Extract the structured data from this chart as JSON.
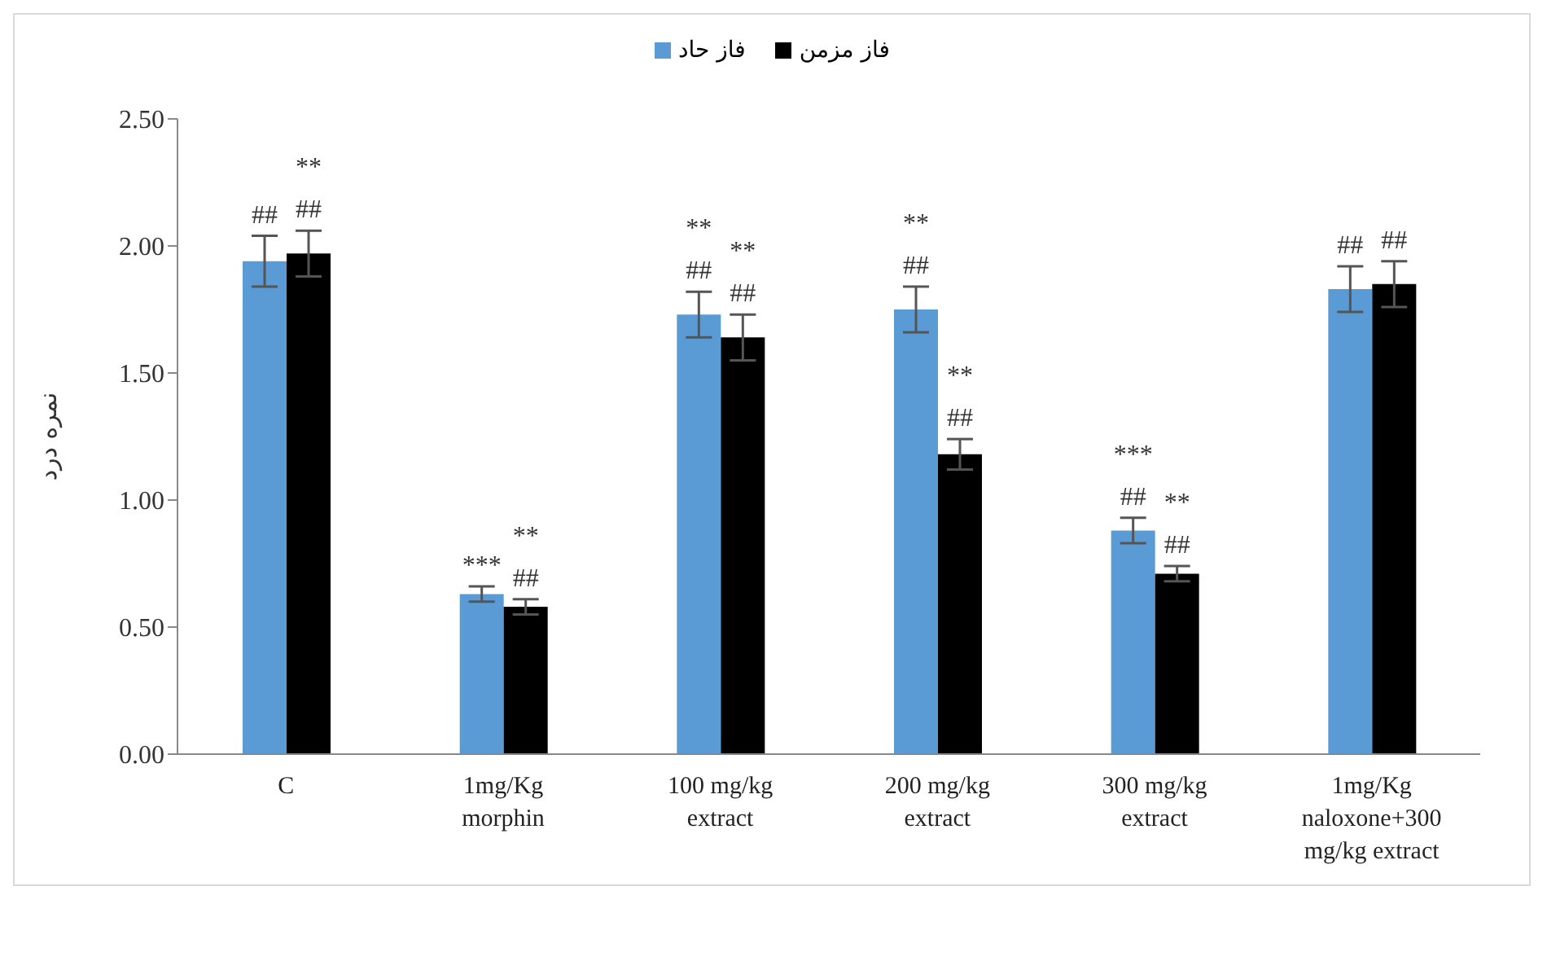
{
  "chart_data": {
    "type": "bar",
    "categories": [
      "C",
      "1mg/Kg\nmorphin",
      "100 mg/kg\nextract",
      "200 mg/kg\nextract",
      "300 mg/kg\nextract",
      "1mg/Kg\nnaloxone+300\nmg/kg extract"
    ],
    "series": [
      {
        "name": "فاز حاد",
        "color": "#5b9bd5",
        "values": [
          1.94,
          0.63,
          1.73,
          1.75,
          0.88,
          1.83
        ],
        "errors": [
          0.1,
          0.03,
          0.09,
          0.09,
          0.05,
          0.09
        ],
        "value_labels": [
          "##",
          "***",
          "**\n##",
          "**\n##",
          "***\n##",
          "##"
        ]
      },
      {
        "name": "فاز مزمن",
        "color": "#000000",
        "values": [
          1.97,
          0.58,
          1.64,
          1.18,
          0.71,
          1.85
        ],
        "errors": [
          0.09,
          0.03,
          0.09,
          0.06,
          0.03,
          0.09
        ],
        "value_labels": [
          "**\n##",
          "**\n##",
          "**\n##",
          "**\n##",
          "**\n##",
          "##"
        ]
      }
    ],
    "ylabel": "نمره درد",
    "ylim": [
      0,
      2.5
    ],
    "yticks": [
      {
        "value": 0,
        "label": "0.00"
      },
      {
        "value": 0.5,
        "label": "0.50"
      },
      {
        "value": 1,
        "label": "1.00"
      },
      {
        "value": 1.5,
        "label": "1.50"
      },
      {
        "value": 2,
        "label": "2.00"
      },
      {
        "value": 2.5,
        "label": "2.50"
      }
    ],
    "legend": "top",
    "grid": false
  }
}
